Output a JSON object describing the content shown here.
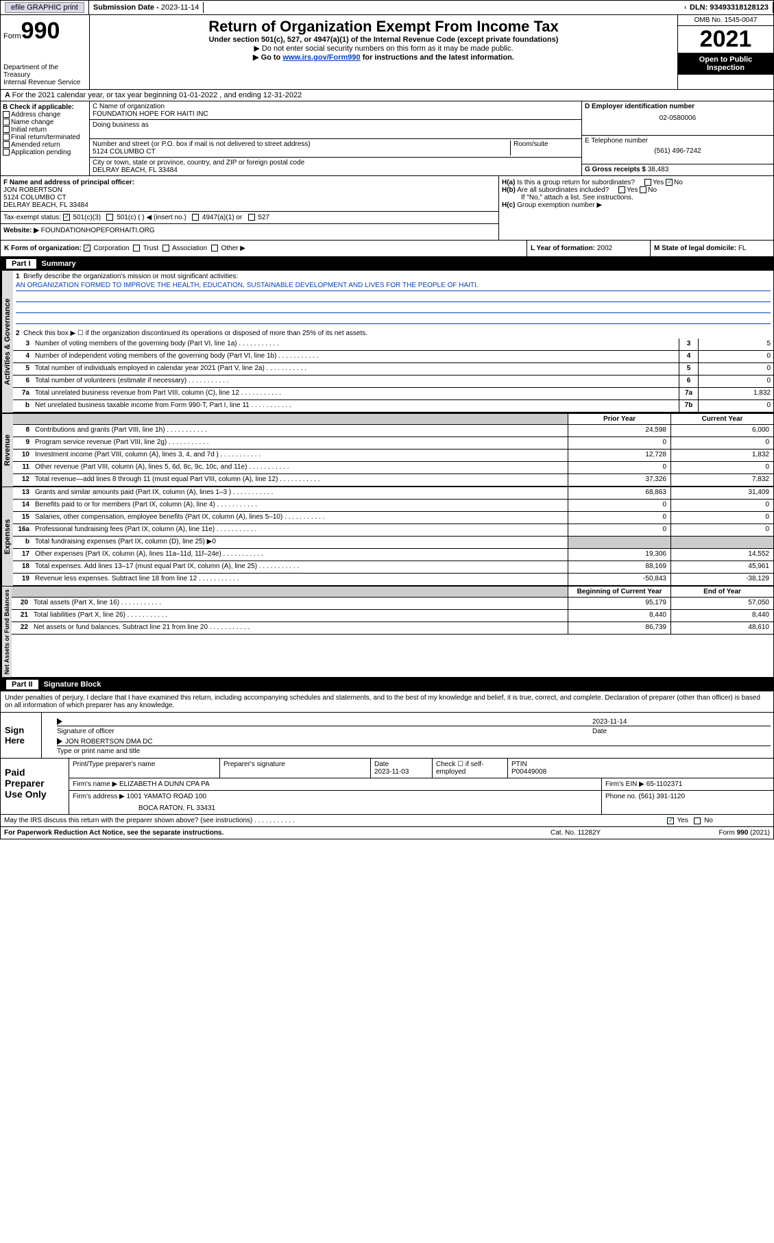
{
  "topbar": {
    "efile": "efile GRAPHIC print",
    "subdate_label": "Submission Date - ",
    "subdate": "2023-11-14",
    "dln_label": "DLN: ",
    "dln": "93493318128123"
  },
  "header": {
    "form_prefix": "Form",
    "form_num": "990",
    "title": "Return of Organization Exempt From Income Tax",
    "subtitle": "Under section 501(c), 527, or 4947(a)(1) of the Internal Revenue Code (except private foundations)",
    "note1": "▶ Do not enter social security numbers on this form as it may be made public.",
    "note2_pre": "▶ Go to ",
    "note2_link": "www.irs.gov/Form990",
    "note2_post": " for instructions and the latest information.",
    "dept": "Department of the Treasury\nInternal Revenue Service",
    "omb": "OMB No. 1545-0047",
    "year": "2021",
    "oti": "Open to Public Inspection"
  },
  "A": {
    "text": "For the 2021 calendar year, or tax year beginning 01-01-2022  , and ending 12-31-2022",
    "label": "A"
  },
  "B": {
    "label": "B Check if applicable:",
    "items": [
      "Address change",
      "Name change",
      "Initial return",
      "Final return/terminated",
      "Amended return",
      "Application pending"
    ]
  },
  "C": {
    "name_label": "C Name of organization",
    "name": "FOUNDATION HOPE FOR HAITI INC",
    "dba_label": "Doing business as",
    "addr_label": "Number and street (or P.O. box if mail is not delivered to street address)",
    "room_label": "Room/suite",
    "addr": "5124 COLUMBO CT",
    "city_label": "City or town, state or province, country, and ZIP or foreign postal code",
    "city": "DELRAY BEACH, FL  33484"
  },
  "D": {
    "label": "D Employer identification number",
    "value": "02-0580006"
  },
  "E": {
    "label": "E Telephone number",
    "value": "(561) 496-7242"
  },
  "G": {
    "label": "G Gross receipts $",
    "value": "38,483"
  },
  "F": {
    "label": "F  Name and address of principal officer:",
    "name": "JON ROBERTSON",
    "addr1": "5124 COLUMBO CT",
    "addr2": "DELRAY BEACH, FL  33484"
  },
  "H": {
    "a": "Is this a group return for subordinates?",
    "b": "Are all subordinates included?",
    "b_note": "If \"No,\" attach a list. See instructions.",
    "c": "Group exemption number ▶",
    "yes": "Yes",
    "no": "No"
  },
  "I": {
    "label": "Tax-exempt status:",
    "opts": [
      "501(c)(3)",
      "501(c) (  ) ◀ (insert no.)",
      "4947(a)(1) or",
      "527"
    ]
  },
  "J": {
    "label": "Website: ▶",
    "value": "FOUNDATIONHOPEFORHAITI.ORG"
  },
  "K": {
    "label": "K Form of organization:",
    "opts": [
      "Corporation",
      "Trust",
      "Association",
      "Other ▶"
    ]
  },
  "L": {
    "label": "L Year of formation:",
    "value": "2002"
  },
  "M": {
    "label": "M State of legal domicile:",
    "value": "FL"
  },
  "part1": {
    "hdr_num": "Part I",
    "hdr_txt": "Summary",
    "q1_label": "1",
    "q1": "Briefly describe the organization's mission or most significant activities:",
    "mission": "AN ORGANIZATION FORMED TO IMPROVE THE HEALTH, EDUCATION, SUSTAINABLE DEVELOPMENT AND LIVES FOR THE PEOPLE OF HAITI.",
    "q2": "Check this box ▶ ☐ if the organization discontinued its operations or disposed of more than 25% of its net assets.",
    "lines_gov": [
      {
        "n": "3",
        "t": "Number of voting members of the governing body (Part VI, line 1a)",
        "box": "3",
        "v": "5"
      },
      {
        "n": "4",
        "t": "Number of independent voting members of the governing body (Part VI, line 1b)",
        "box": "4",
        "v": "0"
      },
      {
        "n": "5",
        "t": "Total number of individuals employed in calendar year 2021 (Part V, line 2a)",
        "box": "5",
        "v": "0"
      },
      {
        "n": "6",
        "t": "Total number of volunteers (estimate if necessary)",
        "box": "6",
        "v": "0"
      },
      {
        "n": "7a",
        "t": "Total unrelated business revenue from Part VIII, column (C), line 12",
        "box": "7a",
        "v": "1,832"
      },
      {
        "n": "b",
        "t": "Net unrelated business taxable income from Form 990-T, Part I, line 11",
        "box": "7b",
        "v": "0"
      }
    ],
    "col_prior": "Prior Year",
    "col_curr": "Current Year",
    "rev": [
      {
        "n": "8",
        "t": "Contributions and grants (Part VIII, line 1h)",
        "p": "24,598",
        "c": "6,000"
      },
      {
        "n": "9",
        "t": "Program service revenue (Part VIII, line 2g)",
        "p": "0",
        "c": "0"
      },
      {
        "n": "10",
        "t": "Investment income (Part VIII, column (A), lines 3, 4, and 7d )",
        "p": "12,728",
        "c": "1,832"
      },
      {
        "n": "11",
        "t": "Other revenue (Part VIII, column (A), lines 5, 6d, 8c, 9c, 10c, and 11e)",
        "p": "0",
        "c": "0"
      },
      {
        "n": "12",
        "t": "Total revenue—add lines 8 through 11 (must equal Part VIII, column (A), line 12)",
        "p": "37,326",
        "c": "7,832"
      }
    ],
    "exp": [
      {
        "n": "13",
        "t": "Grants and similar amounts paid (Part IX, column (A), lines 1–3 )",
        "p": "68,863",
        "c": "31,409"
      },
      {
        "n": "14",
        "t": "Benefits paid to or for members (Part IX, column (A), line 4)",
        "p": "0",
        "c": "0"
      },
      {
        "n": "15",
        "t": "Salaries, other compensation, employee benefits (Part IX, column (A), lines 5–10)",
        "p": "0",
        "c": "0"
      },
      {
        "n": "16a",
        "t": "Professional fundraising fees (Part IX, column (A), line 11e)",
        "p": "0",
        "c": "0"
      },
      {
        "n": "b",
        "t": "Total fundraising expenses (Part IX, column (D), line 25) ▶0",
        "p": "",
        "c": "",
        "grey": true
      },
      {
        "n": "17",
        "t": "Other expenses (Part IX, column (A), lines 11a–11d, 11f–24e)",
        "p": "19,306",
        "c": "14,552"
      },
      {
        "n": "18",
        "t": "Total expenses. Add lines 13–17 (must equal Part IX, column (A), line 25)",
        "p": "88,169",
        "c": "45,961"
      },
      {
        "n": "19",
        "t": "Revenue less expenses. Subtract line 18 from line 12",
        "p": "-50,843",
        "c": "-38,129"
      }
    ],
    "col_begin": "Beginning of Current Year",
    "col_end": "End of Year",
    "net": [
      {
        "n": "20",
        "t": "Total assets (Part X, line 16)",
        "p": "95,179",
        "c": "57,050"
      },
      {
        "n": "21",
        "t": "Total liabilities (Part X, line 26)",
        "p": "8,440",
        "c": "8,440"
      },
      {
        "n": "22",
        "t": "Net assets or fund balances. Subtract line 21 from line 20",
        "p": "86,739",
        "c": "48,610"
      }
    ],
    "vtab_gov": "Activities & Governance",
    "vtab_rev": "Revenue",
    "vtab_exp": "Expenses",
    "vtab_net": "Net Assets or Fund Balances"
  },
  "part2": {
    "hdr_num": "Part II",
    "hdr_txt": "Signature Block",
    "decl": "Under penalties of perjury, I declare that I have examined this return, including accompanying schedules and statements, and to the best of my knowledge and belief, it is true, correct, and complete. Declaration of preparer (other than officer) is based on all information of which preparer has any knowledge."
  },
  "sign": {
    "label": "Sign Here",
    "sig_of": "Signature of officer",
    "date": "Date",
    "date_val": "2023-11-14",
    "name": "JON ROBERTSON  DMA DC",
    "name_label": "Type or print name and title"
  },
  "paid": {
    "label": "Paid Preparer Use Only",
    "h1": "Print/Type preparer's name",
    "h2": "Preparer's signature",
    "h3": "Date",
    "h3v": "2023-11-03",
    "h4": "Check ☐ if self-employed",
    "h5": "PTIN",
    "h5v": "P00449008",
    "firm_label": "Firm's name    ▶",
    "firm": "ELIZABETH A DUNN CPA PA",
    "ein_label": "Firm's EIN ▶",
    "ein": "65-1102371",
    "addr_label": "Firm's address ▶",
    "addr1": "1001 YAMATO ROAD 100",
    "addr2": "BOCA RATON, FL  33431",
    "phone_label": "Phone no.",
    "phone": "(561) 391-1120"
  },
  "may": {
    "q": "May the IRS discuss this return with the preparer shown above? (see instructions)",
    "yes": "Yes",
    "no": "No"
  },
  "footer": {
    "pra": "For Paperwork Reduction Act Notice, see the separate instructions.",
    "cat": "Cat. No. 11282Y",
    "form": "Form 990 (2021)"
  },
  "colors": {
    "link": "#0041c2",
    "grey": "#cccccc",
    "btn": "#d8d8e8"
  }
}
